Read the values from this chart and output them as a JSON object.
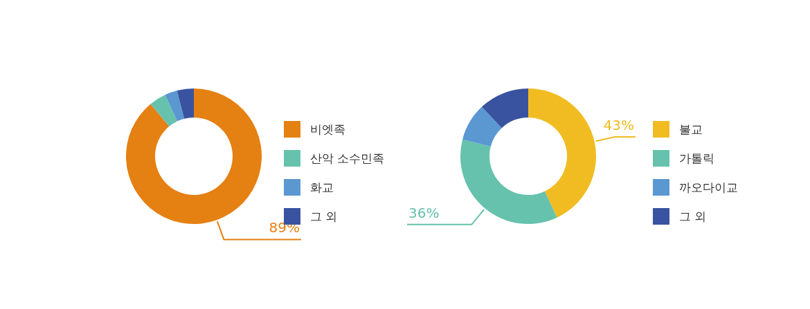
{
  "chart_data": [
    {
      "type": "donut",
      "categories": [
        "비엣족",
        "산악 소수민족",
        "화교",
        "그 외"
      ],
      "values": [
        89,
        4,
        3,
        4
      ],
      "colors": [
        "#e58012",
        "#66c2ac",
        "#5b97d1",
        "#3a53a0"
      ],
      "value_labels": [
        "89%",
        null,
        null,
        null
      ],
      "legend": "right"
    },
    {
      "type": "donut",
      "categories": [
        "불교",
        "가톨릭",
        "까오다이교",
        "그 외"
      ],
      "values": [
        43,
        36,
        9,
        12
      ],
      "colors": [
        "#f0bc22",
        "#66c2ac",
        "#5b97d1",
        "#3a53a0"
      ],
      "value_labels": [
        "43%",
        "36%",
        null,
        null
      ],
      "legend": "right"
    }
  ]
}
